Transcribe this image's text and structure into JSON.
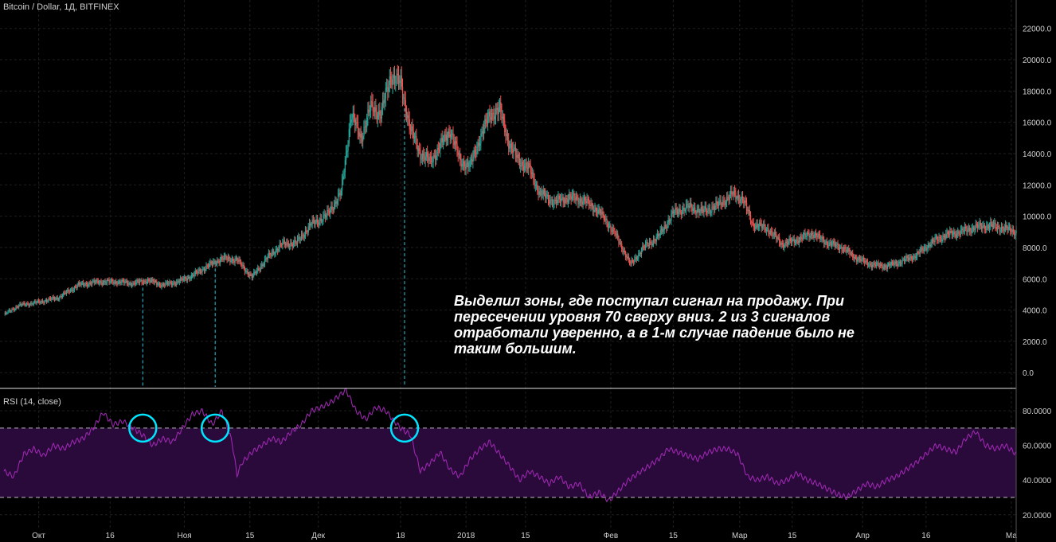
{
  "colors": {
    "background": "#000000",
    "up": "#26a69a",
    "down": "#ef5350",
    "rsi_line": "#9c27b0",
    "rsi_band": "#2a0a3a",
    "marker": "#00e5ff",
    "signal_line": "#26c6da",
    "grid": "#1f1f1f",
    "text": "#d0d0d0",
    "divider": "#e0e0e0"
  },
  "header": {
    "symbol": "Bitcoin / Dollar, 1Д, BITFINEX"
  },
  "rsi_panel": {
    "label": "RSI (14, close)"
  },
  "annotation": {
    "text": "Выделил зоны, где поступал сигнал на продажу. При пересечении уровня 70 сверху вниз. 2 из 3 сигналов отработали уверенно, а в 1-м случае падение было не таким большим."
  },
  "chart_data": [
    {
      "type": "candlestick",
      "title": "Bitcoin / Dollar, 1Д, BITFINEX",
      "y_ticks": [
        "22000.0",
        "20000.0",
        "18000.0",
        "16000.0",
        "14000.0",
        "12000.0",
        "10000.0",
        "8000.0",
        "6000.0",
        "4000.0",
        "2000.0",
        "0.0"
      ],
      "ylim": [
        -600,
        22800
      ],
      "x_ticks": [
        "Окт",
        "16",
        "Ноя",
        "15",
        "Дек",
        "18",
        "2018",
        "15",
        "Фев",
        "15",
        "Мар",
        "15",
        "Апр",
        "16",
        "Ма"
      ],
      "approx_close_path": [
        [
          0,
          3700
        ],
        [
          15,
          4300
        ],
        [
          35,
          4500
        ],
        [
          55,
          4800
        ],
        [
          75,
          5600
        ],
        [
          95,
          5800
        ],
        [
          115,
          5800
        ],
        [
          130,
          5700
        ],
        [
          145,
          5900
        ],
        [
          160,
          5600
        ],
        [
          175,
          5800
        ],
        [
          190,
          6200
        ],
        [
          205,
          6800
        ],
        [
          220,
          7300
        ],
        [
          235,
          7200
        ],
        [
          250,
          6100
        ],
        [
          265,
          7300
        ],
        [
          280,
          8200
        ],
        [
          295,
          8300
        ],
        [
          310,
          9500
        ],
        [
          325,
          10000
        ],
        [
          340,
          11500
        ],
        [
          350,
          16500
        ],
        [
          360,
          15000
        ],
        [
          370,
          17000
        ],
        [
          380,
          16500
        ],
        [
          390,
          19000
        ],
        [
          400,
          18500
        ],
        [
          410,
          15500
        ],
        [
          420,
          14000
        ],
        [
          430,
          13500
        ],
        [
          440,
          14500
        ],
        [
          450,
          15500
        ],
        [
          460,
          13500
        ],
        [
          470,
          13200
        ],
        [
          480,
          15000
        ],
        [
          490,
          16500
        ],
        [
          500,
          16800
        ],
        [
          510,
          14500
        ],
        [
          520,
          13500
        ],
        [
          530,
          13000
        ],
        [
          540,
          11500
        ],
        [
          555,
          10900
        ],
        [
          570,
          11200
        ],
        [
          585,
          11000
        ],
        [
          600,
          10300
        ],
        [
          615,
          9000
        ],
        [
          625,
          7800
        ],
        [
          632,
          6900
        ],
        [
          645,
          8000
        ],
        [
          660,
          8700
        ],
        [
          675,
          10200
        ],
        [
          690,
          10600
        ],
        [
          705,
          10300
        ],
        [
          720,
          10700
        ],
        [
          735,
          11400
        ],
        [
          745,
          11100
        ],
        [
          755,
          9500
        ],
        [
          770,
          9200
        ],
        [
          785,
          8200
        ],
        [
          800,
          8500
        ],
        [
          815,
          8900
        ],
        [
          830,
          8300
        ],
        [
          845,
          8000
        ],
        [
          860,
          7300
        ],
        [
          875,
          6900
        ],
        [
          890,
          6800
        ],
        [
          905,
          7100
        ],
        [
          920,
          7500
        ],
        [
          935,
          8300
        ],
        [
          950,
          8800
        ],
        [
          965,
          9000
        ],
        [
          980,
          9300
        ],
        [
          995,
          9400
        ],
        [
          1010,
          9200
        ],
        [
          1021,
          9000
        ]
      ]
    },
    {
      "type": "line",
      "title": "RSI (14, close)",
      "y_ticks": [
        "80.0000",
        "60.0000",
        "40.0000",
        "20.0000"
      ],
      "ylim": [
        13,
        92
      ],
      "levels": [
        70,
        30
      ],
      "approx_rsi_path": [
        [
          0,
          45
        ],
        [
          10,
          42
        ],
        [
          20,
          55
        ],
        [
          30,
          58
        ],
        [
          40,
          54
        ],
        [
          50,
          60
        ],
        [
          60,
          58
        ],
        [
          70,
          62
        ],
        [
          80,
          64
        ],
        [
          90,
          70
        ],
        [
          100,
          79
        ],
        [
          110,
          72
        ],
        [
          120,
          74
        ],
        [
          130,
          70
        ],
        [
          140,
          66
        ],
        [
          150,
          60
        ],
        [
          160,
          64
        ],
        [
          170,
          62
        ],
        [
          180,
          70
        ],
        [
          190,
          78
        ],
        [
          200,
          80
        ],
        [
          210,
          72
        ],
        [
          220,
          80
        ],
        [
          230,
          62
        ],
        [
          235,
          43
        ],
        [
          240,
          50
        ],
        [
          250,
          56
        ],
        [
          260,
          60
        ],
        [
          270,
          64
        ],
        [
          280,
          62
        ],
        [
          290,
          68
        ],
        [
          300,
          72
        ],
        [
          310,
          80
        ],
        [
          320,
          82
        ],
        [
          330,
          85
        ],
        [
          345,
          92
        ],
        [
          355,
          80
        ],
        [
          365,
          75
        ],
        [
          375,
          82
        ],
        [
          385,
          80
        ],
        [
          392,
          75
        ],
        [
          400,
          70
        ],
        [
          410,
          66
        ],
        [
          420,
          45
        ],
        [
          430,
          50
        ],
        [
          440,
          56
        ],
        [
          450,
          46
        ],
        [
          460,
          42
        ],
        [
          470,
          52
        ],
        [
          480,
          58
        ],
        [
          490,
          62
        ],
        [
          500,
          55
        ],
        [
          510,
          48
        ],
        [
          520,
          40
        ],
        [
          530,
          45
        ],
        [
          540,
          42
        ],
        [
          550,
          38
        ],
        [
          560,
          42
        ],
        [
          570,
          36
        ],
        [
          580,
          38
        ],
        [
          590,
          30
        ],
        [
          600,
          33
        ],
        [
          610,
          28
        ],
        [
          620,
          34
        ],
        [
          630,
          40
        ],
        [
          640,
          44
        ],
        [
          650,
          48
        ],
        [
          660,
          52
        ],
        [
          670,
          58
        ],
        [
          680,
          56
        ],
        [
          690,
          54
        ],
        [
          700,
          52
        ],
        [
          710,
          56
        ],
        [
          720,
          58
        ],
        [
          730,
          58
        ],
        [
          740,
          55
        ],
        [
          750,
          42
        ],
        [
          760,
          40
        ],
        [
          770,
          42
        ],
        [
          780,
          38
        ],
        [
          790,
          40
        ],
        [
          800,
          44
        ],
        [
          810,
          40
        ],
        [
          820,
          38
        ],
        [
          830,
          35
        ],
        [
          840,
          32
        ],
        [
          850,
          30
        ],
        [
          860,
          34
        ],
        [
          870,
          38
        ],
        [
          880,
          36
        ],
        [
          890,
          40
        ],
        [
          900,
          42
        ],
        [
          910,
          46
        ],
        [
          920,
          50
        ],
        [
          930,
          55
        ],
        [
          940,
          60
        ],
        [
          950,
          58
        ],
        [
          960,
          56
        ],
        [
          970,
          64
        ],
        [
          980,
          68
        ],
        [
          990,
          60
        ],
        [
          1000,
          58
        ],
        [
          1010,
          60
        ],
        [
          1021,
          55
        ]
      ]
    }
  ]
}
